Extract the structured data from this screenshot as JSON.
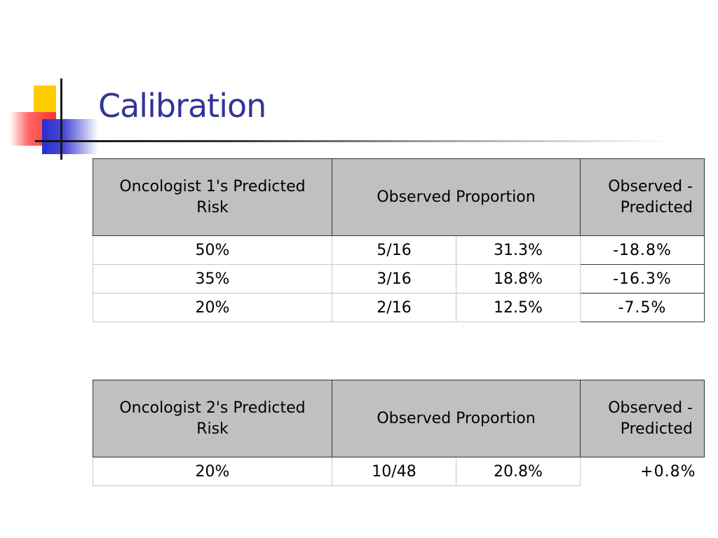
{
  "slide": {
    "title": "Calibration"
  },
  "tables": [
    {
      "headers": {
        "predicted": "Oncologist 1's Predicted Risk",
        "observed": "Observed Proportion",
        "difference": "Observed - Predicted"
      },
      "rows": [
        {
          "predicted": "50%",
          "fraction": "5/16",
          "percent": "31.3%",
          "difference": "-18.8%"
        },
        {
          "predicted": "35%",
          "fraction": "3/16",
          "percent": "18.8%",
          "difference": "-16.3%"
        },
        {
          "predicted": "20%",
          "fraction": "2/16",
          "percent": "12.5%",
          "difference": "-7.5%"
        }
      ]
    },
    {
      "headers": {
        "predicted": "Oncologist 2's Predicted Risk",
        "observed": "Observed Proportion",
        "difference": "Observed - Predicted"
      },
      "rows": [
        {
          "predicted": "20%",
          "fraction": "10/48",
          "percent": "20.8%",
          "difference": "+0.8%"
        }
      ]
    }
  ],
  "colors": {
    "title": "#333399",
    "header_bg": "#c0c0c0",
    "logo_yellow": "#ffcc00",
    "logo_red": "#ff3333",
    "logo_blue": "#2c2cd0"
  }
}
